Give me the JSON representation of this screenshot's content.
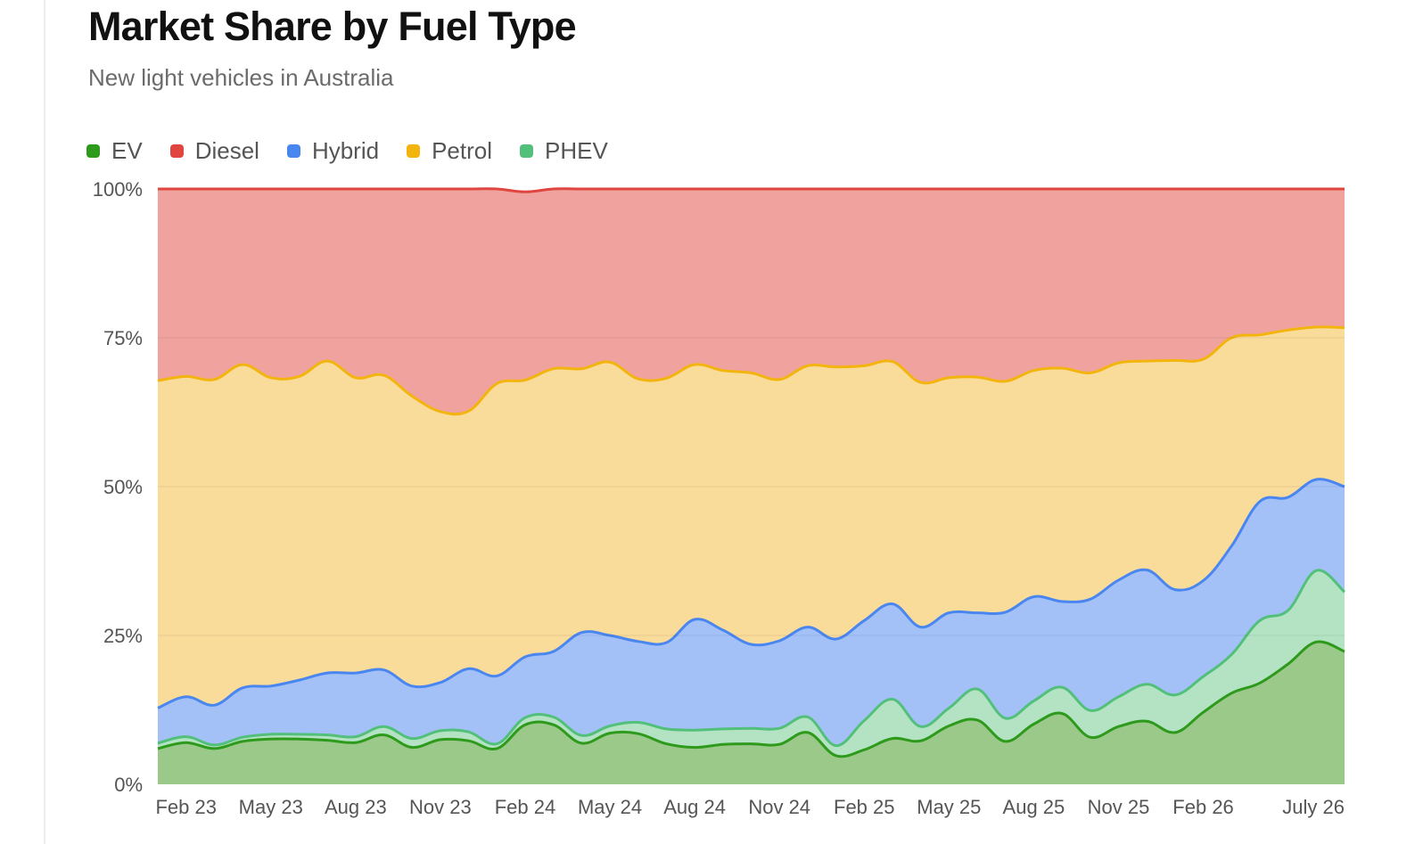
{
  "title": "Market Share by Fuel Type",
  "subtitle": "New light vehicles in Australia",
  "legend": [
    {
      "name": "EV",
      "color": "#2e9a1c"
    },
    {
      "name": "Diesel",
      "color": "#e0463f"
    },
    {
      "name": "Hybrid",
      "color": "#4a86f0"
    },
    {
      "name": "Petrol",
      "color": "#f2b40d"
    },
    {
      "name": "PHEV",
      "color": "#52c07a"
    }
  ],
  "chart_data": {
    "type": "area",
    "stacked": true,
    "grid": true,
    "legend_position": "top-left",
    "ylim": [
      0,
      100
    ],
    "y_ticks": [
      "0%",
      "25%",
      "50%",
      "75%",
      "100%"
    ],
    "y_tick_values": [
      0,
      25,
      50,
      75,
      100
    ],
    "x_tick_labels": [
      {
        "label": "Feb 23",
        "index": 1
      },
      {
        "label": "May 23",
        "index": 4
      },
      {
        "label": "Aug 23",
        "index": 7
      },
      {
        "label": "Nov 23",
        "index": 10
      },
      {
        "label": "Feb 24",
        "index": 13
      },
      {
        "label": "May 24",
        "index": 16
      },
      {
        "label": "Aug 24",
        "index": 19
      },
      {
        "label": "Nov 24",
        "index": 22
      },
      {
        "label": "Feb 25",
        "index": 25
      },
      {
        "label": "May 25",
        "index": 28
      },
      {
        "label": "Aug 25",
        "index": 31
      },
      {
        "label": "Nov 25",
        "index": 34
      },
      {
        "label": "Feb 26",
        "index": 37
      },
      {
        "label": "July 26",
        "index": 42
      }
    ],
    "x": [
      "Jan 23",
      "Feb 23",
      "Mar 23",
      "Apr 23",
      "May 23",
      "Jun 23",
      "Jul 23",
      "Aug 23",
      "Sep 23",
      "Oct 23",
      "Nov 23",
      "Dec 23",
      "Jan 24",
      "Feb 24",
      "Mar 24",
      "Apr 24",
      "May 24",
      "Jun 24",
      "Jul 24",
      "Aug 24",
      "Sep 24",
      "Oct 24",
      "Nov 24",
      "Dec 24",
      "Jan 25",
      "Feb 25",
      "Mar 25",
      "Apr 25",
      "May 25",
      "Jun 25",
      "Jul 25",
      "Aug 25",
      "Sep 25",
      "Oct 25",
      "Nov 25",
      "Dec 25",
      "Jan 26",
      "Feb 26",
      "Mar 26",
      "Apr 26",
      "May 26",
      "Jun 26",
      "Jul 26"
    ],
    "series": [
      {
        "name": "EV",
        "color": "#2e9a1c",
        "fill": "#9bc98a",
        "values": [
          6.0,
          7.0,
          6.0,
          7.2,
          7.6,
          7.6,
          7.4,
          7.0,
          8.3,
          6.2,
          7.5,
          7.3,
          6.0,
          10.0,
          10.0,
          6.9,
          8.6,
          8.5,
          6.8,
          6.2,
          6.7,
          6.8,
          6.7,
          8.7,
          4.8,
          5.8,
          7.7,
          7.3,
          9.8,
          10.8,
          7.2,
          10.1,
          11.9,
          7.9,
          9.7,
          10.6,
          8.7,
          12.1,
          15.3,
          17.0,
          20.2,
          23.9,
          22.3
        ]
      },
      {
        "name": "PHEV",
        "color": "#52c07a",
        "fill": "#b3e3c2",
        "values": [
          0.9,
          1.0,
          0.6,
          0.7,
          0.8,
          0.8,
          0.9,
          1.0,
          1.4,
          1.5,
          1.5,
          1.5,
          0.8,
          1.2,
          1.3,
          1.3,
          1.2,
          1.9,
          2.5,
          2.9,
          2.6,
          2.6,
          2.7,
          2.6,
          1.7,
          4.9,
          6.6,
          2.4,
          3.0,
          5.2,
          3.9,
          3.9,
          4.4,
          4.5,
          5.0,
          6.2,
          6.3,
          6.0,
          6.5,
          10.5,
          9.0,
          12.0,
          10.0
        ]
      },
      {
        "name": "Hybrid",
        "color": "#4a86f0",
        "fill": "#a3c1f7",
        "values": [
          5.9,
          6.7,
          6.7,
          8.3,
          8.1,
          9.1,
          10.4,
          10.7,
          9.5,
          8.8,
          8.1,
          10.6,
          11.4,
          10.2,
          11.0,
          17.3,
          15.2,
          13.6,
          14.5,
          18.6,
          16.6,
          14.1,
          14.7,
          15.1,
          17.9,
          16.8,
          16.0,
          16.7,
          16.0,
          12.8,
          17.8,
          17.5,
          14.4,
          18.7,
          19.6,
          19.2,
          17.7,
          16.1,
          18.2,
          20.0,
          19.0,
          15.3,
          17.7
        ]
      },
      {
        "name": "Petrol",
        "color": "#f2b40d",
        "fill": "#f9dc9a",
        "values": [
          55.0,
          53.8,
          54.7,
          54.3,
          51.8,
          51.0,
          52.4,
          49.6,
          49.5,
          48.7,
          45.5,
          43.3,
          49.1,
          46.5,
          47.5,
          44.3,
          45.9,
          44.1,
          44.4,
          42.8,
          43.6,
          45.6,
          43.9,
          43.9,
          45.7,
          42.8,
          40.7,
          41.1,
          39.5,
          39.6,
          38.8,
          38.0,
          39.2,
          38.0,
          36.5,
          35.1,
          38.5,
          37.2,
          35.0,
          28.0,
          28.1,
          25.6,
          26.7
        ]
      },
      {
        "name": "Diesel",
        "color": "#e0463f",
        "fill": "#f0a39e",
        "values": [
          32.2,
          31.5,
          32.0,
          29.5,
          31.7,
          31.5,
          28.9,
          31.7,
          31.3,
          34.8,
          37.4,
          37.3,
          32.7,
          31.6,
          30.2,
          30.2,
          29.1,
          31.9,
          31.8,
          29.5,
          30.5,
          30.9,
          32.0,
          29.7,
          29.9,
          29.7,
          29.0,
          32.5,
          31.7,
          31.6,
          32.3,
          30.5,
          30.1,
          30.9,
          29.2,
          28.9,
          28.8,
          28.6,
          25.0,
          24.5,
          23.7,
          23.2,
          23.3
        ]
      }
    ]
  }
}
